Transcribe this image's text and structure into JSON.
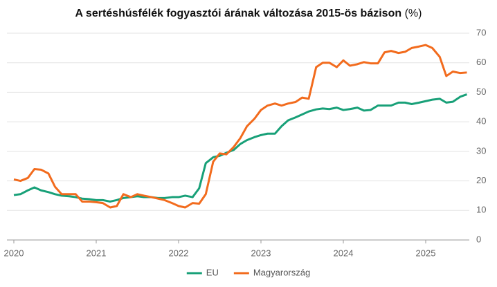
{
  "chart_data": {
    "type": "line",
    "title": "A sertéshúsfélék fogyasztói árának változása 2015-ös bázison",
    "title_unit": "(%)",
    "x": [
      2020,
      2020.08,
      2020.17,
      2020.25,
      2020.33,
      2020.42,
      2020.5,
      2020.58,
      2020.67,
      2020.75,
      2020.83,
      2020.92,
      2021,
      2021.08,
      2021.17,
      2021.25,
      2021.33,
      2021.42,
      2021.5,
      2021.58,
      2021.67,
      2021.75,
      2021.83,
      2021.92,
      2022,
      2022.08,
      2022.17,
      2022.25,
      2022.33,
      2022.42,
      2022.5,
      2022.58,
      2022.67,
      2022.75,
      2022.83,
      2022.92,
      2023,
      2023.08,
      2023.17,
      2023.25,
      2023.33,
      2023.42,
      2023.5,
      2023.58,
      2023.67,
      2023.75,
      2023.83,
      2023.92,
      2024,
      2024.08,
      2024.17,
      2024.25,
      2024.33,
      2024.42,
      2024.5,
      2024.58,
      2024.67,
      2024.75,
      2024.83,
      2024.92,
      2025,
      2025.08,
      2025.17,
      2025.25,
      2025.33,
      2025.42,
      2025.5
    ],
    "series": [
      {
        "name": "EU",
        "color": "#18a078",
        "values": [
          15.2,
          15.5,
          16.8,
          17.8,
          16.8,
          16.2,
          15.5,
          15,
          14.8,
          14.5,
          14,
          13.8,
          13.5,
          13.5,
          13,
          13.5,
          14.2,
          14.5,
          14.8,
          14.5,
          14.5,
          14.2,
          14.2,
          14.5,
          14.5,
          15,
          14.5,
          17.5,
          26,
          28,
          28.5,
          29.5,
          30.5,
          32.5,
          33.8,
          34.8,
          35.5,
          36,
          36,
          38.5,
          40.5,
          41.5,
          42.5,
          43.5,
          44.2,
          44.5,
          44.3,
          44.8,
          44,
          44.3,
          44.8,
          43.8,
          44,
          45.5,
          45.5,
          45.5,
          46.5,
          46.5,
          46,
          46.5,
          47,
          47.5,
          47.8,
          46.5,
          46.8,
          48.5,
          49.3
        ]
      },
      {
        "name": "Magyarország",
        "color": "#f26b1d",
        "values": [
          20.5,
          20,
          21,
          24,
          23.8,
          22.5,
          18,
          15.5,
          15.5,
          15.5,
          13,
          13,
          12.8,
          12.5,
          11,
          11.5,
          15.5,
          14.5,
          15.5,
          15,
          14.5,
          14,
          13.5,
          12.5,
          11.5,
          11,
          12.5,
          12.3,
          15.5,
          26.5,
          29.3,
          29,
          31.5,
          34.5,
          38.5,
          41,
          44,
          45.5,
          46.2,
          45.5,
          46.2,
          46.7,
          48.2,
          47.8,
          58.5,
          60,
          60,
          58.5,
          60.8,
          59,
          59.5,
          60.2,
          59.8,
          59.8,
          63.5,
          64,
          63.3,
          63.7,
          65,
          65.5,
          66,
          65,
          62,
          55.5,
          57,
          56.5,
          56.7
        ]
      }
    ],
    "xlim": [
      2020,
      2025.5
    ],
    "xticks": [
      2020,
      2021,
      2022,
      2023,
      2024,
      2025
    ],
    "ylim": [
      0,
      70
    ],
    "yticks": [
      0,
      10,
      20,
      30,
      40,
      50,
      60,
      70
    ],
    "grid": true,
    "y_axis_side": "right",
    "legend": "bottom"
  }
}
